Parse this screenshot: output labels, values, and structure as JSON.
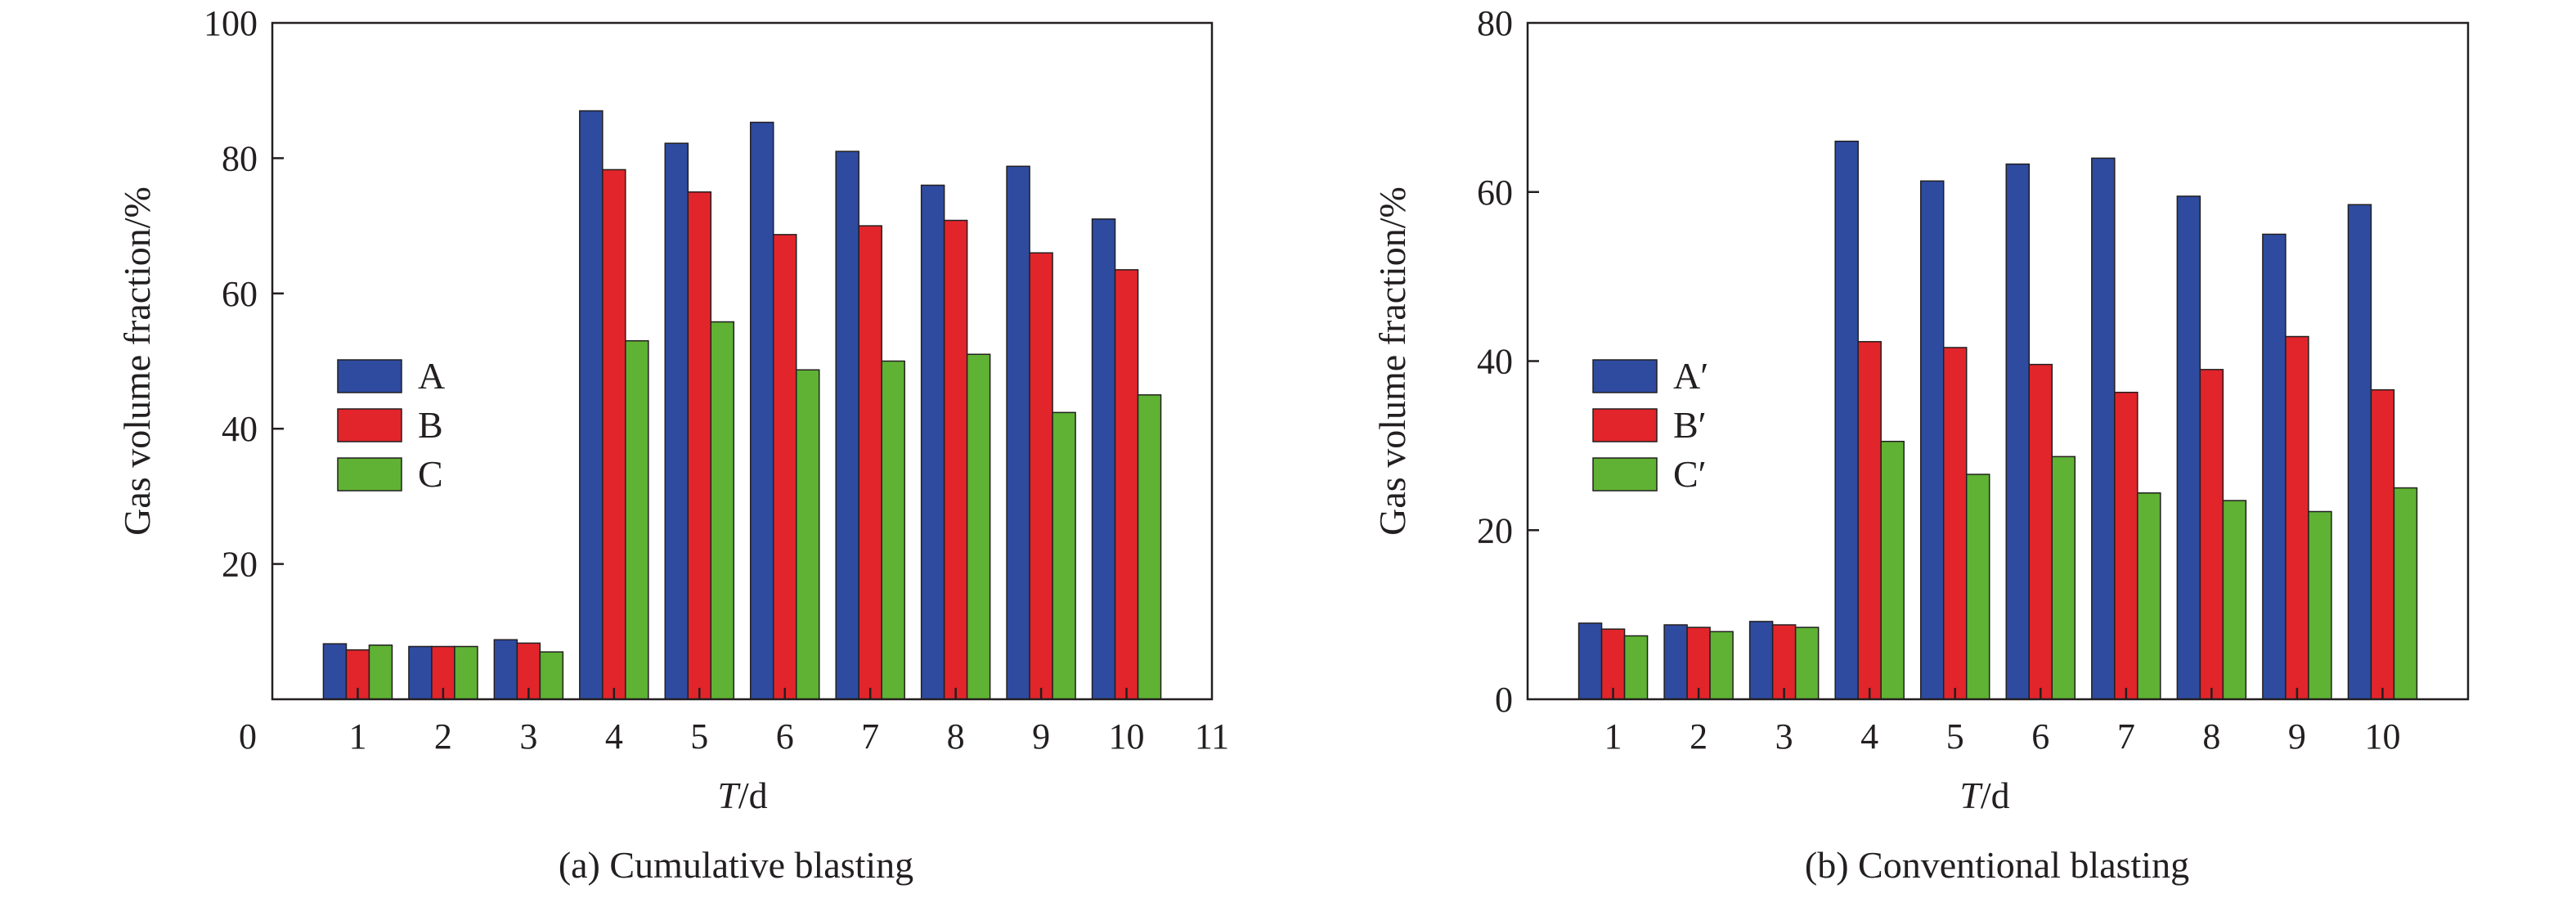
{
  "chart_data": [
    {
      "type": "bar",
      "caption": "(a) Cumulative blasting",
      "xlabel_italic": "T",
      "xlabel_rest": "/d",
      "ylabel": "Gas volume fraction/%",
      "xlim": [
        0,
        11
      ],
      "ylim": [
        0,
        100
      ],
      "xticks": [
        "0",
        "1",
        "2",
        "3",
        "4",
        "5",
        "6",
        "7",
        "8",
        "9",
        "10",
        "11"
      ],
      "yticks": [
        "20",
        "40",
        "60",
        "80",
        "100"
      ],
      "categories": [
        "1",
        "2",
        "3",
        "4",
        "5",
        "6",
        "7",
        "8",
        "9",
        "10"
      ],
      "legend_position": "center-left",
      "grid": false,
      "series": [
        {
          "name": "A",
          "color": "#2e4ba0",
          "values": [
            8.2,
            7.8,
            8.8,
            87.0,
            82.2,
            85.3,
            81.0,
            76.0,
            78.8,
            71.0
          ]
        },
        {
          "name": "B",
          "color": "#e2252b",
          "values": [
            7.3,
            7.8,
            8.3,
            78.3,
            75.0,
            68.7,
            70.0,
            70.8,
            66.0,
            63.5
          ]
        },
        {
          "name": "C",
          "color": "#5fb233",
          "values": [
            8.0,
            7.8,
            7.0,
            53.0,
            55.8,
            48.7,
            50.0,
            51.0,
            42.4,
            45.0
          ]
        }
      ]
    },
    {
      "type": "bar",
      "caption": "(b) Conventional blasting",
      "xlabel_italic": "T",
      "xlabel_rest": "/d",
      "ylabel": "Gas volume fraction/%",
      "xlim": [
        0,
        11
      ],
      "ylim": [
        0,
        80
      ],
      "xticks": [
        "1",
        "2",
        "3",
        "4",
        "5",
        "6",
        "7",
        "8",
        "9",
        "10"
      ],
      "yticks": [
        "0",
        "20",
        "40",
        "60",
        "80"
      ],
      "categories": [
        "1",
        "2",
        "3",
        "4",
        "5",
        "6",
        "7",
        "8",
        "9",
        "10"
      ],
      "legend_position": "center-left",
      "grid": false,
      "series": [
        {
          "name": "A′",
          "color": "#2e4ba0",
          "values": [
            9.0,
            8.8,
            9.2,
            66.0,
            61.3,
            63.3,
            64.0,
            59.5,
            55.0,
            58.5
          ]
        },
        {
          "name": "B′",
          "color": "#e2252b",
          "values": [
            8.3,
            8.5,
            8.8,
            42.3,
            41.6,
            39.6,
            36.3,
            39.0,
            42.9,
            36.6
          ]
        },
        {
          "name": "C′",
          "color": "#5fb233",
          "values": [
            7.5,
            8.0,
            8.5,
            30.5,
            26.6,
            28.7,
            24.4,
            23.5,
            22.2,
            25.0
          ]
        }
      ]
    }
  ]
}
